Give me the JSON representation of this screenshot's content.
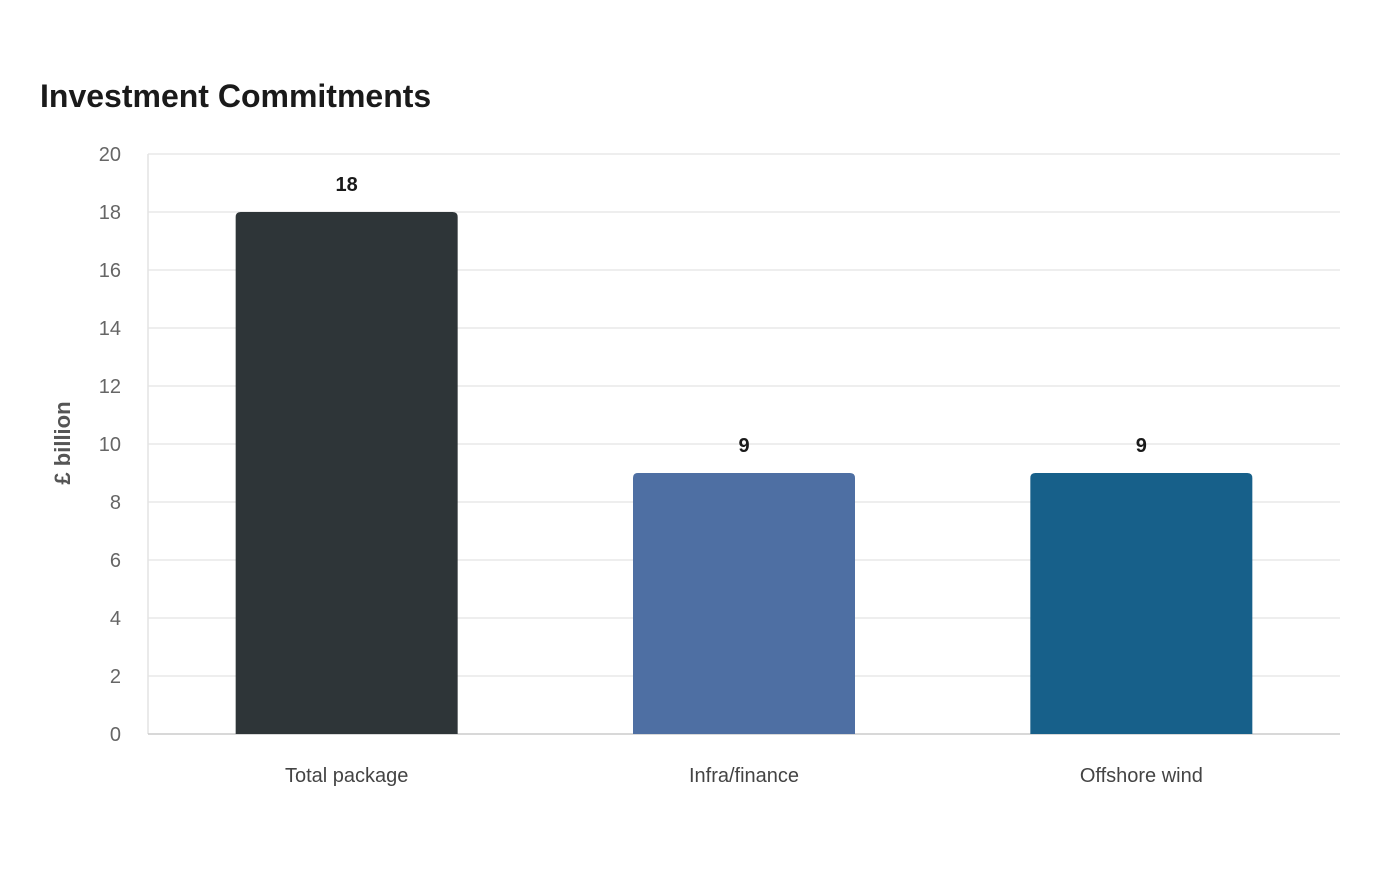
{
  "chart_data": {
    "type": "bar",
    "title": "Investment Commitments",
    "xlabel": "",
    "ylabel": "£ billion",
    "categories": [
      "Total package",
      "Infra/finance",
      "Offshore wind"
    ],
    "values": [
      18,
      9,
      9
    ],
    "data_labels": [
      "18",
      "9",
      "9"
    ],
    "bar_colors": [
      "#2e3538",
      "#4e6fa3",
      "#17608a"
    ],
    "ylim": [
      0,
      20
    ],
    "yticks": [
      0,
      2,
      4,
      6,
      8,
      10,
      12,
      14,
      16,
      18,
      20
    ],
    "grid": true,
    "legend": "none"
  }
}
